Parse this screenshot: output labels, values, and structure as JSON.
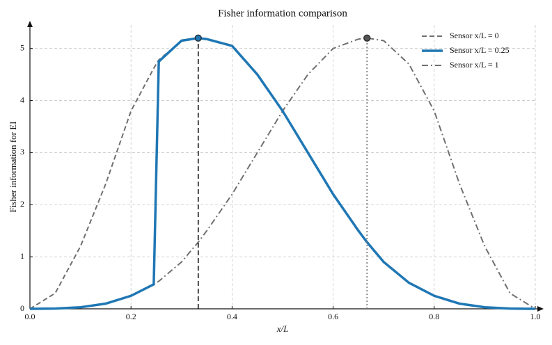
{
  "chart_data": {
    "type": "line",
    "title": "Fisher information comparison",
    "xlabel": "x/L",
    "ylabel": "Fisher information for EI",
    "x": [
      0,
      0.05,
      0.1,
      0.15,
      0.2,
      0.245,
      0.255,
      0.3,
      0.333,
      0.35,
      0.4,
      0.45,
      0.5,
      0.55,
      0.6,
      0.65,
      0.667,
      0.7,
      0.75,
      0.8,
      0.85,
      0.9,
      0.95,
      1
    ],
    "series": [
      {
        "name": "Sensor x/L = 0",
        "color": "#707070",
        "linestyle": "dashed",
        "width": 2,
        "values": [
          0,
          0.3,
          1.2,
          2.4,
          3.8,
          4.62,
          4.78,
          5.15,
          5.2,
          5.18,
          5.05,
          4.5,
          3.8,
          3.0,
          2.2,
          1.5,
          1.28,
          0.9,
          0.5,
          0.25,
          0.1,
          0.03,
          0.005,
          0
        ]
      },
      {
        "name": "Sensor x/L = 0.25",
        "color": "#1f77b4",
        "linestyle": "solid",
        "width": 3.5,
        "values": [
          0,
          0.005,
          0.03,
          0.1,
          0.25,
          0.47,
          4.75,
          5.15,
          5.2,
          5.18,
          5.05,
          4.5,
          3.8,
          3.0,
          2.2,
          1.5,
          1.28,
          0.9,
          0.5,
          0.25,
          0.1,
          0.03,
          0.005,
          0
        ]
      },
      {
        "name": "Sensor x/L = 1",
        "color": "#707070",
        "linestyle": "dashdot",
        "width": 2,
        "values": [
          0,
          0.005,
          0.03,
          0.1,
          0.25,
          0.47,
          0.53,
          0.9,
          1.28,
          1.5,
          2.2,
          3.0,
          3.8,
          4.5,
          5.0,
          5.18,
          5.2,
          5.15,
          4.7,
          3.8,
          2.4,
          1.2,
          0.3,
          0
        ]
      }
    ],
    "markers": [
      {
        "x": 0.333,
        "y": 5.2,
        "color": "#1f77b4",
        "line_color": "#111111",
        "linestyle": "dashed"
      },
      {
        "x": 0.667,
        "y": 5.2,
        "color": "#555555",
        "line_color": "#707070",
        "linestyle": "dotted"
      }
    ],
    "xlim": [
      0,
      1
    ],
    "ylim": [
      0,
      5.45
    ],
    "xticks": [
      {
        "value": 0,
        "label": "0.0"
      },
      0.2,
      0.4,
      0.6,
      0.8,
      {
        "value": 1,
        "label": "1.0"
      }
    ],
    "yticks": [
      0,
      1,
      2,
      3,
      4,
      5
    ],
    "grid": true,
    "legend": "upper right"
  }
}
